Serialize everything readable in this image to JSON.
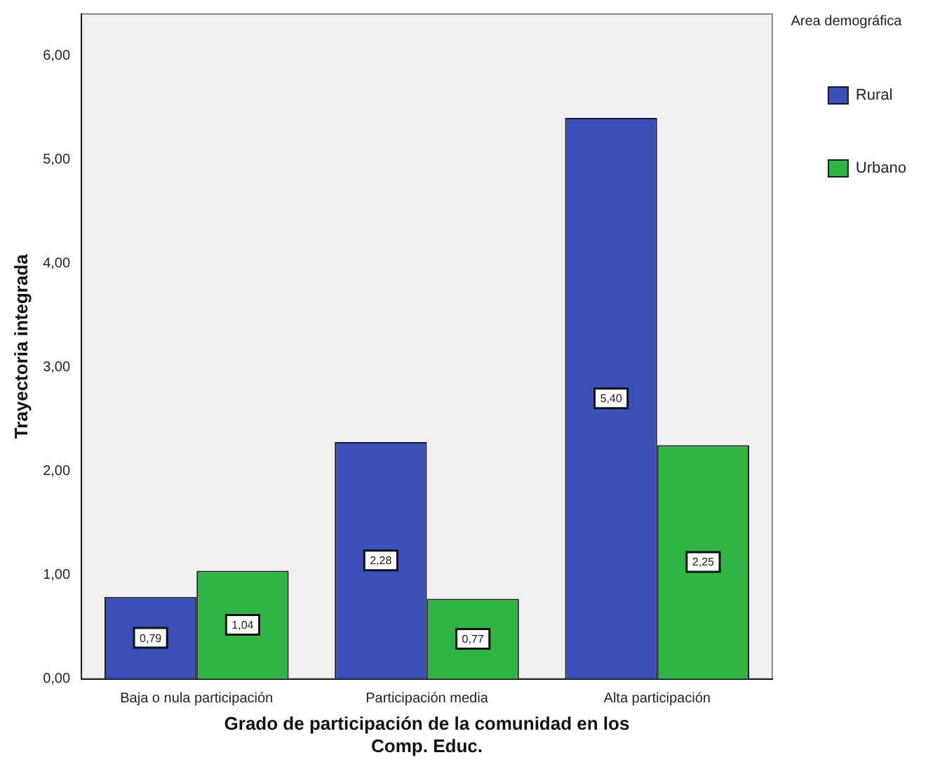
{
  "chart_data": {
    "type": "bar",
    "xlabel": "Grado de participación de la comunidad en los Comp. Educ.",
    "ylabel": "Trayectoria integrada",
    "legend_title": "Area demográfica",
    "legend": "top right",
    "categories": [
      "Baja o nula participación",
      "Participación media",
      "Alta participación"
    ],
    "series": [
      {
        "name": "Rural",
        "color": "#3b4fb8",
        "values": [
          0.79,
          2.28,
          5.4
        ],
        "value_labels": [
          "0,79",
          "2,28",
          "5,40"
        ]
      },
      {
        "name": "Urbano",
        "color": "#2fb544",
        "values": [
          1.04,
          0.77,
          2.25
        ],
        "value_labels": [
          "1,04",
          "0,77",
          "2,25"
        ]
      }
    ],
    "ylim": [
      0,
      6.4
    ],
    "yticks": [
      {
        "value": 0,
        "label": "0,00"
      },
      {
        "value": 1,
        "label": "1,00"
      },
      {
        "value": 2,
        "label": "2,00"
      },
      {
        "value": 3,
        "label": "3,00"
      },
      {
        "value": 4,
        "label": "4,00"
      },
      {
        "value": 5,
        "label": "5,00"
      },
      {
        "value": 6,
        "label": "6,00"
      }
    ],
    "grid": false
  }
}
